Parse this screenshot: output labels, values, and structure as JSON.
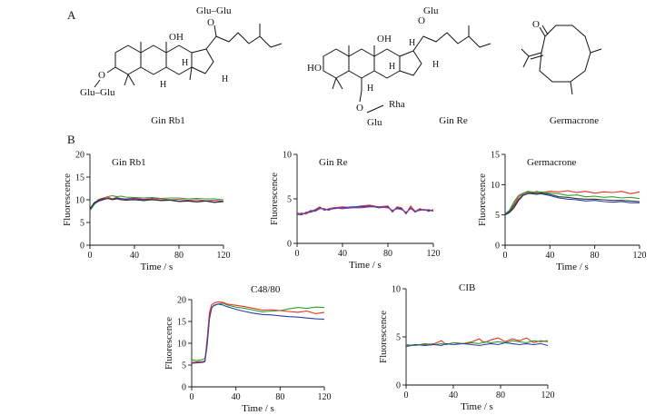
{
  "panel_labels": {
    "a": "A",
    "b": "B"
  },
  "structures": {
    "gin_rb1": {
      "name": "Gin Rb1",
      "labels": {
        "glu_chain_top": "Glu–Glu",
        "glu_chain_left": "Glu–Glu",
        "oxygen": "O",
        "oh": "OH",
        "h": "H"
      }
    },
    "gin_re": {
      "name": "Gin Re",
      "labels": {
        "glu_top": "Glu",
        "rha": "Rha",
        "glu_bottom": "Glu",
        "oxygen": "O",
        "oh": "OH",
        "ho": "HO",
        "h": "H"
      }
    },
    "germacrone": {
      "name": "Germacrone",
      "labels": {
        "oxygen": "O"
      }
    }
  },
  "colors": {
    "series_green": "#2ca02c",
    "series_red": "#e8321e",
    "series_blue": "#2b3fb0",
    "series_black": "#333333",
    "series_purple": "#7a3fa0"
  },
  "chart_data": [
    {
      "type": "line",
      "title": "Gin Rb1",
      "xlabel": "Time / s",
      "ylabel": "Fluorescence",
      "xlim": [
        0,
        120
      ],
      "ylim": [
        0,
        20
      ],
      "xticks": [
        0,
        40,
        80,
        120
      ],
      "yticks": [
        0,
        5,
        10,
        15,
        20
      ],
      "series": [
        {
          "name": "green",
          "color": "#2ca02c",
          "x": [
            0,
            4,
            8,
            12,
            16,
            20,
            24,
            28,
            32,
            40,
            48,
            56,
            64,
            72,
            80,
            88,
            96,
            104,
            112,
            120
          ],
          "y": [
            7.6,
            9.0,
            9.8,
            10.3,
            10.7,
            10.9,
            10.7,
            10.8,
            10.6,
            10.5,
            10.4,
            10.5,
            10.3,
            10.4,
            10.4,
            10.2,
            10.3,
            10.2,
            10.2,
            10.0
          ]
        },
        {
          "name": "red",
          "color": "#e8321e",
          "x": [
            0,
            4,
            8,
            12,
            16,
            20,
            24,
            28,
            32,
            40,
            48,
            56,
            64,
            72,
            80,
            88,
            96,
            104,
            112,
            120
          ],
          "y": [
            7.8,
            9.3,
            10.1,
            10.4,
            10.6,
            10.2,
            10.5,
            10.3,
            10.2,
            10.4,
            10.1,
            10.3,
            10.2,
            10.0,
            10.1,
            9.9,
            10.0,
            9.8,
            9.9,
            9.7
          ]
        },
        {
          "name": "blue",
          "color": "#2b3fb0",
          "x": [
            0,
            4,
            8,
            12,
            16,
            20,
            24,
            28,
            32,
            40,
            48,
            56,
            64,
            72,
            80,
            88,
            96,
            104,
            112,
            120
          ],
          "y": [
            7.9,
            9.2,
            9.7,
            10.0,
            10.3,
            10.1,
            10.4,
            10.2,
            10.1,
            10.2,
            10.0,
            10.1,
            9.9,
            10.0,
            9.7,
            9.8,
            9.6,
            9.8,
            9.5,
            9.7
          ]
        },
        {
          "name": "black",
          "color": "#333333",
          "x": [
            0,
            4,
            8,
            12,
            16,
            20,
            24,
            28,
            32,
            40,
            48,
            56,
            64,
            72,
            80,
            88,
            96,
            104,
            112,
            120
          ],
          "y": [
            8.0,
            9.4,
            9.9,
            10.2,
            10.3,
            10.0,
            10.2,
            10.0,
            9.9,
            10.0,
            9.8,
            10.0,
            9.8,
            9.9,
            9.6,
            9.7,
            9.5,
            9.7,
            9.4,
            9.6
          ]
        }
      ]
    },
    {
      "type": "line",
      "title": "Gin Re",
      "xlabel": "Time / s",
      "ylabel": "Fluorescence",
      "xlim": [
        0,
        120
      ],
      "ylim": [
        0,
        10
      ],
      "xticks": [
        0,
        40,
        80,
        120
      ],
      "yticks": [
        0,
        5,
        10
      ],
      "series": [
        {
          "name": "red",
          "color": "#e8321e",
          "x": [
            0,
            4,
            8,
            12,
            16,
            20,
            24,
            28,
            32,
            40,
            48,
            56,
            64,
            72,
            80,
            84,
            88,
            92,
            96,
            100,
            104,
            108,
            112,
            116,
            120
          ],
          "y": [
            3.2,
            3.4,
            3.3,
            3.6,
            3.8,
            4.1,
            3.7,
            3.9,
            4.0,
            4.1,
            4.0,
            4.2,
            4.3,
            4.1,
            4.2,
            3.5,
            4.1,
            4.0,
            3.3,
            4.2,
            3.6,
            3.9,
            3.7,
            3.8,
            3.6
          ]
        },
        {
          "name": "blue",
          "color": "#2b3fb0",
          "x": [
            0,
            4,
            8,
            12,
            16,
            20,
            24,
            28,
            32,
            40,
            48,
            56,
            64,
            72,
            80,
            84,
            88,
            92,
            96,
            100,
            104,
            108,
            112,
            116,
            120
          ],
          "y": [
            3.3,
            3.2,
            3.5,
            3.5,
            3.7,
            4.0,
            3.8,
            3.8,
            3.9,
            4.0,
            4.1,
            4.1,
            4.2,
            4.0,
            4.1,
            3.6,
            4.0,
            3.9,
            3.4,
            4.0,
            3.5,
            3.8,
            3.8,
            3.7,
            3.7
          ]
        },
        {
          "name": "purple",
          "color": "#7a3fa0",
          "x": [
            0,
            4,
            8,
            12,
            16,
            20,
            24,
            28,
            32,
            40,
            48,
            56,
            64,
            72,
            80,
            84,
            88,
            92,
            96,
            100,
            104,
            108,
            112,
            116,
            120
          ],
          "y": [
            3.4,
            3.3,
            3.4,
            3.7,
            3.6,
            3.9,
            3.9,
            3.7,
            4.0,
            3.9,
            4.0,
            4.0,
            4.1,
            4.1,
            4.0,
            3.7,
            3.9,
            3.8,
            3.5,
            3.9,
            3.6,
            3.7,
            3.8,
            3.6,
            3.8
          ]
        }
      ]
    },
    {
      "type": "line",
      "title": "Germacrone",
      "xlabel": "Time / s",
      "ylabel": "Fluorescence",
      "xlim": [
        0,
        120
      ],
      "ylim": [
        0,
        15
      ],
      "xticks": [
        0,
        40,
        80,
        120
      ],
      "yticks": [
        0,
        5,
        10,
        15
      ],
      "series": [
        {
          "name": "red",
          "color": "#e8321e",
          "x": [
            0,
            4,
            8,
            12,
            16,
            20,
            24,
            28,
            32,
            40,
            48,
            56,
            64,
            72,
            80,
            88,
            96,
            104,
            112,
            120
          ],
          "y": [
            5.0,
            5.6,
            6.8,
            8.0,
            8.5,
            8.8,
            8.6,
            8.9,
            8.7,
            8.9,
            8.8,
            9.0,
            8.7,
            8.9,
            8.6,
            8.8,
            8.7,
            8.9,
            8.5,
            8.8
          ]
        },
        {
          "name": "green",
          "color": "#2ca02c",
          "x": [
            0,
            4,
            8,
            12,
            16,
            20,
            24,
            28,
            32,
            40,
            48,
            56,
            64,
            72,
            80,
            88,
            96,
            104,
            112,
            120
          ],
          "y": [
            5.1,
            5.8,
            7.2,
            8.2,
            8.6,
            8.9,
            8.8,
            8.7,
            8.8,
            8.6,
            8.5,
            8.2,
            8.3,
            8.0,
            8.1,
            7.9,
            8.0,
            7.8,
            7.9,
            7.7
          ]
        },
        {
          "name": "blue",
          "color": "#2b3fb0",
          "x": [
            0,
            4,
            8,
            12,
            16,
            20,
            24,
            28,
            32,
            40,
            48,
            56,
            64,
            72,
            80,
            88,
            96,
            104,
            112,
            120
          ],
          "y": [
            5.2,
            5.5,
            6.5,
            7.6,
            8.3,
            8.6,
            8.5,
            8.4,
            8.5,
            8.2,
            7.8,
            7.6,
            7.5,
            7.3,
            7.4,
            7.2,
            7.1,
            7.2,
            7.0,
            7.0
          ]
        },
        {
          "name": "black",
          "color": "#333333",
          "x": [
            0,
            4,
            8,
            12,
            16,
            20,
            24,
            28,
            32,
            40,
            48,
            56,
            64,
            72,
            80,
            88,
            96,
            104,
            112,
            120
          ],
          "y": [
            5.0,
            5.4,
            6.2,
            7.4,
            8.2,
            8.5,
            8.6,
            8.5,
            8.6,
            8.4,
            8.0,
            7.9,
            7.7,
            7.6,
            7.6,
            7.5,
            7.4,
            7.4,
            7.3,
            7.2
          ]
        }
      ]
    },
    {
      "type": "line",
      "title": "C48/80",
      "xlabel": "Time / s",
      "ylabel": "Fluorescence",
      "xlim": [
        0,
        120
      ],
      "ylim": [
        0,
        20
      ],
      "xticks": [
        0,
        40,
        80,
        120
      ],
      "yticks": [
        0,
        5,
        10,
        15,
        20
      ],
      "series": [
        {
          "name": "green",
          "color": "#2ca02c",
          "x": [
            0,
            5,
            10,
            12,
            14,
            16,
            18,
            20,
            24,
            28,
            32,
            40,
            48,
            56,
            64,
            72,
            80,
            88,
            96,
            104,
            112,
            120
          ],
          "y": [
            6.2,
            6.0,
            6.3,
            6.5,
            10.0,
            16.0,
            18.2,
            18.6,
            19.0,
            19.2,
            18.8,
            18.3,
            18.0,
            17.6,
            17.2,
            17.4,
            17.5,
            17.9,
            18.2,
            18.0,
            18.3,
            18.2
          ]
        },
        {
          "name": "red",
          "color": "#e8321e",
          "x": [
            0,
            5,
            10,
            12,
            14,
            16,
            18,
            20,
            24,
            28,
            32,
            40,
            48,
            56,
            64,
            72,
            80,
            88,
            96,
            104,
            112,
            120
          ],
          "y": [
            5.6,
            5.7,
            5.8,
            6.0,
            11.0,
            17.0,
            18.8,
            19.2,
            19.5,
            19.4,
            19.0,
            18.7,
            18.4,
            18.0,
            17.6,
            17.7,
            17.5,
            17.3,
            17.1,
            17.4,
            16.8,
            17.1
          ]
        },
        {
          "name": "blue",
          "color": "#2b3fb0",
          "x": [
            0,
            5,
            10,
            12,
            14,
            16,
            18,
            20,
            24,
            28,
            32,
            40,
            48,
            56,
            64,
            72,
            80,
            88,
            96,
            104,
            112,
            120
          ],
          "y": [
            5.4,
            5.5,
            5.6,
            5.8,
            9.5,
            15.5,
            18.0,
            18.7,
            19.0,
            18.8,
            18.4,
            17.8,
            17.3,
            16.9,
            16.6,
            16.5,
            16.3,
            16.1,
            16.0,
            15.8,
            15.6,
            15.5
          ]
        }
      ]
    },
    {
      "type": "line",
      "title": "CIB",
      "xlabel": "Time / s",
      "ylabel": "Fluorescence",
      "xlim": [
        0,
        120
      ],
      "ylim": [
        0,
        10
      ],
      "xticks": [
        0,
        40,
        80,
        120
      ],
      "yticks": [
        0,
        5,
        10
      ],
      "series": [
        {
          "name": "red",
          "color": "#e8321e",
          "x": [
            0,
            8,
            16,
            24,
            30,
            34,
            40,
            48,
            56,
            62,
            66,
            72,
            78,
            84,
            90,
            96,
            102,
            108,
            114,
            120
          ],
          "y": [
            4.1,
            4.2,
            4.2,
            4.3,
            4.6,
            4.2,
            4.4,
            4.3,
            4.5,
            4.8,
            4.4,
            4.7,
            4.9,
            4.5,
            4.8,
            4.6,
            4.9,
            4.4,
            4.6,
            4.5
          ]
        },
        {
          "name": "green",
          "color": "#2ca02c",
          "x": [
            0,
            8,
            16,
            24,
            30,
            34,
            40,
            48,
            56,
            62,
            66,
            72,
            78,
            84,
            90,
            96,
            102,
            108,
            114,
            120
          ],
          "y": [
            4.2,
            4.1,
            4.3,
            4.2,
            4.3,
            4.2,
            4.4,
            4.3,
            4.4,
            4.3,
            4.5,
            4.4,
            4.5,
            4.4,
            4.6,
            4.5,
            4.4,
            4.6,
            4.5,
            4.6
          ]
        },
        {
          "name": "blue",
          "color": "#2b3fb0",
          "x": [
            0,
            8,
            16,
            24,
            30,
            34,
            40,
            48,
            56,
            62,
            66,
            72,
            78,
            84,
            90,
            96,
            102,
            108,
            114,
            120
          ],
          "y": [
            4.0,
            4.2,
            4.1,
            4.2,
            4.1,
            4.3,
            4.2,
            4.3,
            4.2,
            4.1,
            4.2,
            4.3,
            4.2,
            4.4,
            4.3,
            4.2,
            4.3,
            4.2,
            4.3,
            4.1
          ]
        }
      ]
    }
  ]
}
